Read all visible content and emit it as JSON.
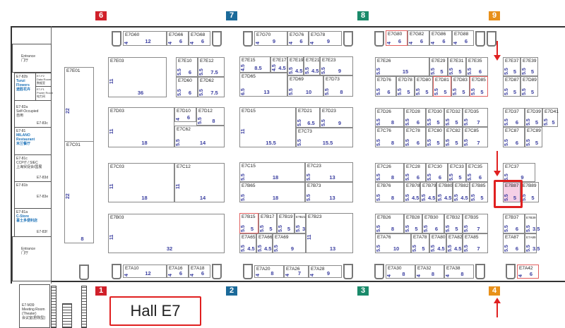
{
  "hall_label": "Hall E7",
  "gates": {
    "top": [
      {
        "num": "6",
        "color": "#d0202a"
      },
      {
        "num": "7",
        "color": "#1b6a9a"
      },
      {
        "num": "8",
        "color": "#1a8a6a"
      },
      {
        "num": "9",
        "color": "#e8901a"
      }
    ],
    "bottom": [
      {
        "num": "1",
        "color": "#d0202a"
      },
      {
        "num": "2",
        "color": "#1b6a9a"
      },
      {
        "num": "3",
        "color": "#1a8a6a"
      },
      {
        "num": "4",
        "color": "#e8901a"
      }
    ]
  },
  "highlight_color": "#e02020",
  "side_rooms": {
    "entrance_top": {
      "en": "Entrance",
      "zh": "门厅"
    },
    "r82b": {
      "code": "E7-82b",
      "name": "Tunzi Flowers",
      "zh": "途胜花卉"
    },
    "f2": {
      "code": "E7-F2",
      "name": "Data Room",
      "zh": "数据室"
    },
    "f1": {
      "code": "E7-F1",
      "name": "Power Room",
      "zh": "电力间"
    },
    "r82a": {
      "code": "E7-82a",
      "name": "Self-Occupied",
      "zh": "自用"
    },
    "r83c": "E7-83c",
    "r81": {
      "code": "E7-81",
      "name": "MILANO Restaurant",
      "zh": "米兰餐厅"
    },
    "r81c": {
      "code": "E7-81c",
      "name": "CCPIT / SIEC",
      "zh": "上海贸促会/国展"
    },
    "r83d": "E7-83d",
    "r81b": "E7-81b",
    "r83e": "E7-83e",
    "r81a": {
      "code": "E7-81a",
      "name": "C-Store",
      "zh": "喜士多便利店"
    },
    "r83f": "E7-83f",
    "entrance_bottom": {
      "en": "Entrance",
      "zh": "门厅"
    },
    "m39": {
      "code": "E7-M39",
      "name": "Meeting Room",
      "sub": "(Theater)",
      "zh": "会议室(剧院型)"
    }
  },
  "booths": [
    {
      "id": "E7G60",
      "depth": "4",
      "width": "12"
    },
    {
      "id": "E7G66",
      "depth": "4",
      "width": "6"
    },
    {
      "id": "E7G68",
      "depth": "4",
      "width": "6"
    },
    {
      "id": "E7G70",
      "depth": "4",
      "width": "9"
    },
    {
      "id": "E7G76",
      "depth": "4",
      "width": "6"
    },
    {
      "id": "E7G78",
      "depth": "4",
      "width": "9"
    },
    {
      "id": "E7G80",
      "depth": "4",
      "width": "6",
      "red": true
    },
    {
      "id": "E7G82",
      "depth": "4",
      "width": "6"
    },
    {
      "id": "E7G86",
      "depth": "4",
      "width": "6"
    },
    {
      "id": "E7G88",
      "depth": "4",
      "width": "6"
    },
    {
      "id": "E7E01",
      "depth": "22",
      "width": "8"
    },
    {
      "id": "E7C01",
      "depth": "22",
      "width": "8"
    },
    {
      "id": "E7E03",
      "depth": "11",
      "width": "36"
    },
    {
      "id": "E7E10",
      "depth": "5.5",
      "width": "6"
    },
    {
      "id": "E7E12",
      "depth": "5.5",
      "width": "7.5"
    },
    {
      "id": "E7D60",
      "depth": "5.5",
      "width": "6"
    },
    {
      "id": "E7D62",
      "depth": "5.5",
      "width": "7.5"
    },
    {
      "id": "E7D03",
      "depth": "11",
      "width": "18"
    },
    {
      "id": "E7D10",
      "depth": "4",
      "width": "6"
    },
    {
      "id": "E7D12",
      "depth": "5.5",
      "width": "8"
    },
    {
      "id": "E7C62",
      "depth": "5.5",
      "width": "14"
    },
    {
      "id": "E7C03",
      "depth": "11",
      "width": "18"
    },
    {
      "id": "E7C12",
      "depth": "11",
      "width": "14"
    },
    {
      "id": "E7B03",
      "depth": "11",
      "width": "32"
    },
    {
      "id": "E7A10",
      "depth": "4",
      "width": "12"
    },
    {
      "id": "E7A16",
      "depth": "4",
      "width": "6"
    },
    {
      "id": "E7A18",
      "depth": "4",
      "width": "6"
    },
    {
      "id": "E7E15",
      "depth": "4.5",
      "width": "8.5"
    },
    {
      "id": "E7E17",
      "depth": "4.5",
      "width": "4.5"
    },
    {
      "id": "E7E19",
      "depth": "5.5",
      "width": "4.5"
    },
    {
      "id": "E7E21",
      "depth": "5.5",
      "width": "4.5"
    },
    {
      "id": "E7E23",
      "depth": "5.5",
      "width": "9"
    },
    {
      "id": "E7D65",
      "depth": "6.5",
      "width": "13"
    },
    {
      "id": "E7D69",
      "depth": "5.5",
      "width": "10"
    },
    {
      "id": "E7D73",
      "depth": "5.5",
      "width": "8"
    },
    {
      "id": "E7D15",
      "depth": "11",
      "width": "15.5"
    },
    {
      "id": "E7D21",
      "depth": "5.5",
      "width": "6.5"
    },
    {
      "id": "E7D23",
      "depth": "5.5",
      "width": "9"
    },
    {
      "id": "E7C73",
      "depth": "5.5",
      "width": "15.5"
    },
    {
      "id": "E7C15",
      "depth": "5.5",
      "width": "18"
    },
    {
      "id": "E7C23",
      "depth": "5.5",
      "width": "13"
    },
    {
      "id": "E7B65",
      "depth": "5.5",
      "width": "18"
    },
    {
      "id": "E7B73",
      "depth": "5.5",
      "width": "13"
    },
    {
      "id": "E7B15",
      "depth": "5.5",
      "width": "5",
      "red": true
    },
    {
      "id": "E7B17",
      "depth": "5.5",
      "width": "5"
    },
    {
      "id": "E7B19",
      "depth": "5.5",
      "width": "5"
    },
    {
      "id": "E7B21",
      "depth": "5.5",
      "width": "3"
    },
    {
      "id": "E7B23",
      "depth": "11",
      "width": "13"
    },
    {
      "id": "E7A65",
      "depth": "5.5",
      "width": "4.5"
    },
    {
      "id": "E7A66",
      "depth": "5.5",
      "width": "4.5"
    },
    {
      "id": "E7A69",
      "depth": "5.5",
      "width": "9"
    },
    {
      "id": "E7A20",
      "depth": "4",
      "width": "8"
    },
    {
      "id": "E7A26",
      "depth": "4",
      "width": "7"
    },
    {
      "id": "E7A28",
      "depth": "4",
      "width": "9"
    },
    {
      "id": "E7E26",
      "depth": "5.5",
      "width": "15"
    },
    {
      "id": "E7E29",
      "depth": "5.5",
      "width": "5"
    },
    {
      "id": "E7E31",
      "depth": "5.5",
      "width": "5"
    },
    {
      "id": "E7E35",
      "depth": "5.5",
      "width": "6"
    },
    {
      "id": "E7D76",
      "depth": "5.5",
      "width": "6"
    },
    {
      "id": "E7D78",
      "depth": "5.5",
      "width": "5"
    },
    {
      "id": "E7D80",
      "depth": "5.5",
      "width": "5"
    },
    {
      "id": "E7D81",
      "depth": "5.5",
      "width": "5",
      "red": true
    },
    {
      "id": "E7D83",
      "depth": "5.5",
      "width": "5"
    },
    {
      "id": "E7D85",
      "depth": "5.5",
      "width": "5",
      "red": true
    },
    {
      "id": "E7E37",
      "depth": "5.5",
      "width": "5"
    },
    {
      "id": "E7E39",
      "depth": "5.5",
      "width": "5"
    },
    {
      "id": "E7D87",
      "depth": "5.5",
      "width": "5"
    },
    {
      "id": "E7D89",
      "depth": "5.5",
      "width": "5"
    },
    {
      "id": "E7D26",
      "depth": "5.5",
      "width": "8"
    },
    {
      "id": "E7D28",
      "depth": "5.5",
      "width": "6"
    },
    {
      "id": "E7D30",
      "depth": "5.5",
      "width": "5"
    },
    {
      "id": "E7D32",
      "depth": "5.5",
      "width": "5"
    },
    {
      "id": "E7D35",
      "depth": "5.5",
      "width": "7"
    },
    {
      "id": "E7D37",
      "depth": "5.5",
      "width": "6"
    },
    {
      "id": "E7D39",
      "depth": "5.5",
      "width": "5"
    },
    {
      "id": "E7D41",
      "depth": "5.5",
      "width": "5"
    },
    {
      "id": "E7C76",
      "depth": "5.5",
      "width": "8"
    },
    {
      "id": "E7C78",
      "depth": "5.5",
      "width": "6"
    },
    {
      "id": "E7C80",
      "depth": "5.5",
      "width": "5"
    },
    {
      "id": "E7C82",
      "depth": "5.5",
      "width": "5"
    },
    {
      "id": "E7C85",
      "depth": "5.5",
      "width": "7"
    },
    {
      "id": "E7C87",
      "depth": "5.5",
      "width": "6"
    },
    {
      "id": "E7C89",
      "depth": "5.5",
      "width": "5"
    },
    {
      "id": "E7C26",
      "depth": "5.5",
      "width": "8"
    },
    {
      "id": "E7C28",
      "depth": "5.5",
      "width": "6"
    },
    {
      "id": "E7C30",
      "depth": "5.5",
      "width": "6"
    },
    {
      "id": "E7C33",
      "depth": "5.5",
      "width": "5"
    },
    {
      "id": "E7C35",
      "depth": "5.5",
      "width": "6"
    },
    {
      "id": "E7C37",
      "depth": "5.5",
      "width": "9"
    },
    {
      "id": "E7B76",
      "depth": "5.5",
      "width": "8"
    },
    {
      "id": "E7B78",
      "depth": "5.5",
      "width": "4.5"
    },
    {
      "id": "E7B79",
      "depth": "5.5",
      "width": "4.5"
    },
    {
      "id": "E7B80",
      "depth": "5.5",
      "width": "4.5"
    },
    {
      "id": "E7B82",
      "depth": "5.5",
      "width": "4.5"
    },
    {
      "id": "E7B85",
      "depth": "5.5",
      "width": "5"
    },
    {
      "id": "E7B87",
      "depth": "5.5",
      "width": "5",
      "pink": true,
      "highlighted": true
    },
    {
      "id": "E7B89",
      "depth": "5.5",
      "width": "5"
    },
    {
      "id": "E7B26",
      "depth": "5.5",
      "width": "8"
    },
    {
      "id": "E7B28",
      "depth": "5.5",
      "width": "5"
    },
    {
      "id": "E7B30",
      "depth": "5.5",
      "width": "6"
    },
    {
      "id": "E7B32",
      "depth": "5.5",
      "width": "5"
    },
    {
      "id": "E7B35",
      "depth": "5.5",
      "width": "7"
    },
    {
      "id": "E7B37",
      "depth": "5.5",
      "width": "6"
    },
    {
      "id": "E7B39",
      "depth": "5.5",
      "width": "3.5"
    },
    {
      "id": "E7A76",
      "depth": "5.5",
      "width": "10"
    },
    {
      "id": "E7A78",
      "depth": "5.5",
      "width": "5"
    },
    {
      "id": "E7A80",
      "depth": "5.5",
      "width": "4.5"
    },
    {
      "id": "E7A82",
      "depth": "5.5",
      "width": "4.5"
    },
    {
      "id": "E7A85",
      "depth": "5.5",
      "width": "7"
    },
    {
      "id": "E7A87",
      "depth": "5.5",
      "width": "6"
    },
    {
      "id": "E7A89",
      "depth": "5.5",
      "width": "3.5"
    },
    {
      "id": "E7A30",
      "depth": "4",
      "width": "8"
    },
    {
      "id": "E7A32",
      "depth": "4",
      "width": "8"
    },
    {
      "id": "E7A38",
      "depth": "4",
      "width": "8"
    },
    {
      "id": "E7A42",
      "depth": "4",
      "width": "6",
      "red": true
    }
  ]
}
